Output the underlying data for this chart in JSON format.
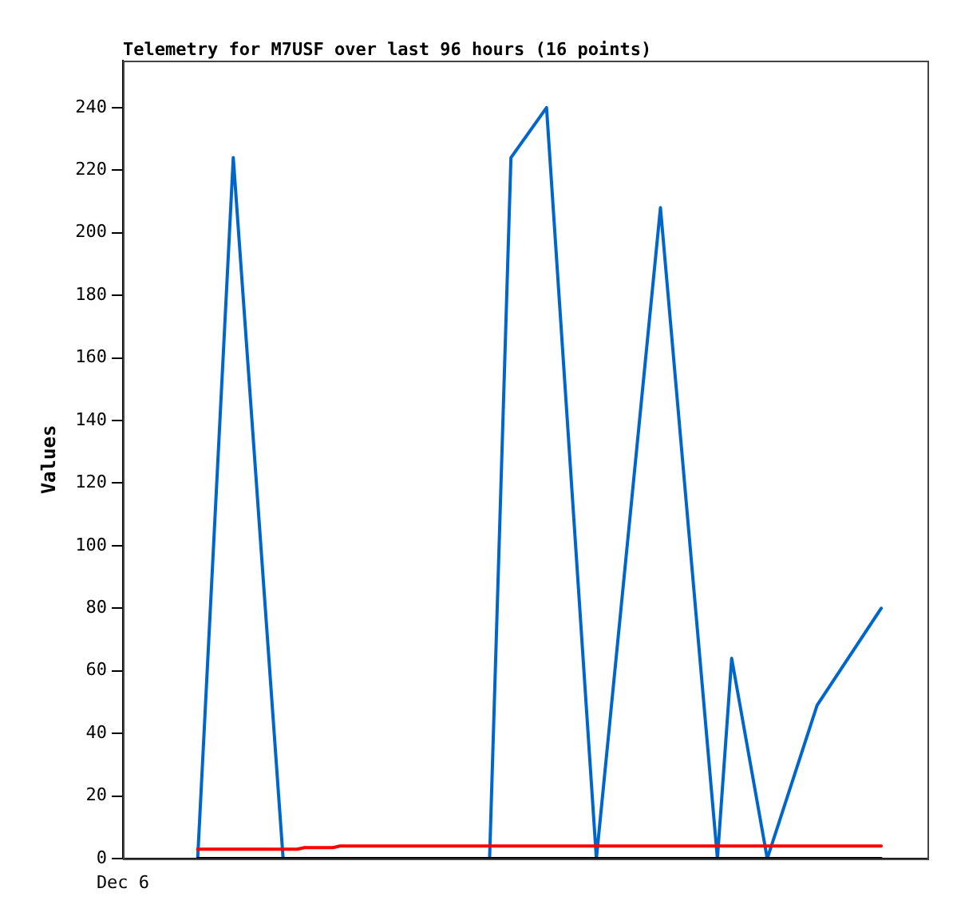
{
  "chart_data": {
    "type": "line",
    "title": "Telemetry for M7USF over last 96 hours (16 points)",
    "ylabel": "Values",
    "annotations": [
      "Dec 6"
    ],
    "categories": [
      null,
      null,
      null,
      null,
      null,
      null,
      null,
      null,
      null,
      null,
      null,
      null,
      null,
      null,
      null,
      null,
      null,
      null,
      null,
      null,
      null,
      null,
      null,
      null,
      null,
      null,
      null,
      null,
      null,
      null,
      null,
      null,
      null,
      null,
      null,
      null,
      null,
      null,
      null,
      null,
      null,
      null,
      null,
      null,
      null,
      null,
      null,
      null,
      null,
      null,
      null,
      null,
      null,
      null,
      null,
      null,
      null,
      null,
      null,
      null,
      null,
      null,
      null,
      null,
      null,
      null,
      null,
      null,
      null,
      null,
      null,
      null,
      null,
      null,
      null,
      null,
      null,
      null,
      null,
      null,
      null,
      null,
      null,
      null,
      null,
      null,
      null,
      null,
      null,
      null,
      null,
      null,
      null,
      null,
      null,
      null,
      null,
      null,
      null,
      null,
      null,
      null,
      null,
      null,
      null,
      null,
      null,
      null,
      null,
      null,
      null,
      null,
      null
    ],
    "ylim": [
      0,
      255
    ],
    "yticks": [
      0,
      20,
      40,
      60,
      80,
      100,
      120,
      140,
      160,
      180,
      200,
      220,
      240
    ],
    "grid": false,
    "legend": false,
    "marker": "none",
    "line_style": "solid",
    "series": [
      {
        "color": "#000000",
        "values": [
          null,
          null,
          null,
          null,
          null,
          null,
          null,
          null,
          null,
          null,
          0,
          null,
          null,
          null,
          null,
          null,
          null,
          null,
          null,
          null,
          null,
          null,
          null,
          null,
          null,
          null,
          null,
          null,
          null,
          null,
          null,
          null,
          null,
          null,
          null,
          null,
          null,
          null,
          null,
          null,
          null,
          null,
          null,
          null,
          null,
          null,
          null,
          null,
          null,
          null,
          null,
          null,
          null,
          null,
          null,
          null,
          null,
          null,
          null,
          null,
          null,
          null,
          null,
          null,
          null,
          null,
          null,
          null,
          null,
          null,
          null,
          null,
          null,
          null,
          null,
          null,
          null,
          null,
          null,
          null,
          null,
          null,
          null,
          null,
          null,
          null,
          null,
          null,
          null,
          null,
          null,
          null,
          null,
          null,
          null,
          null,
          null,
          null,
          null,
          null,
          null,
          null,
          null,
          null,
          null,
          null,
          0,
          null,
          null,
          null,
          null,
          null,
          null
        ]
      },
      {
        "color": "#ff0000",
        "values": [
          null,
          null,
          null,
          null,
          null,
          null,
          null,
          null,
          null,
          null,
          3,
          null,
          null,
          null,
          null,
          null,
          null,
          null,
          null,
          null,
          null,
          null,
          null,
          null,
          3,
          3.5,
          null,
          null,
          null,
          3.5,
          4,
          null,
          null,
          null,
          null,
          null,
          null,
          null,
          null,
          null,
          null,
          null,
          null,
          null,
          null,
          null,
          null,
          null,
          null,
          null,
          null,
          null,
          null,
          null,
          null,
          null,
          null,
          null,
          null,
          null,
          null,
          null,
          null,
          null,
          null,
          null,
          null,
          null,
          null,
          null,
          null,
          null,
          null,
          null,
          null,
          null,
          null,
          null,
          null,
          null,
          null,
          null,
          null,
          null,
          null,
          null,
          null,
          null,
          null,
          null,
          null,
          null,
          null,
          null,
          null,
          null,
          null,
          null,
          null,
          null,
          null,
          null,
          null,
          null,
          null,
          null,
          4,
          null,
          null,
          null,
          null,
          null,
          null
        ]
      },
      {
        "color": "#0066cc",
        "values": [
          null,
          null,
          null,
          null,
          null,
          null,
          null,
          null,
          null,
          null,
          0,
          null,
          null,
          null,
          null,
          224,
          null,
          null,
          null,
          null,
          null,
          null,
          0,
          null,
          null,
          null,
          null,
          null,
          null,
          null,
          null,
          null,
          null,
          null,
          null,
          null,
          null,
          null,
          null,
          null,
          null,
          null,
          null,
          null,
          null,
          null,
          null,
          null,
          null,
          null,
          null,
          0,
          null,
          null,
          224,
          null,
          null,
          null,
          null,
          240,
          null,
          null,
          null,
          null,
          null,
          null,
          0,
          null,
          null,
          null,
          null,
          null,
          null,
          null,
          null,
          208,
          null,
          null,
          null,
          null,
          null,
          null,
          null,
          0,
          null,
          64,
          null,
          null,
          null,
          null,
          0,
          null,
          null,
          null,
          null,
          null,
          null,
          49,
          null,
          null,
          null,
          null,
          null,
          null,
          null,
          null,
          80,
          null,
          null,
          null,
          null,
          null,
          null
        ]
      }
    ]
  }
}
